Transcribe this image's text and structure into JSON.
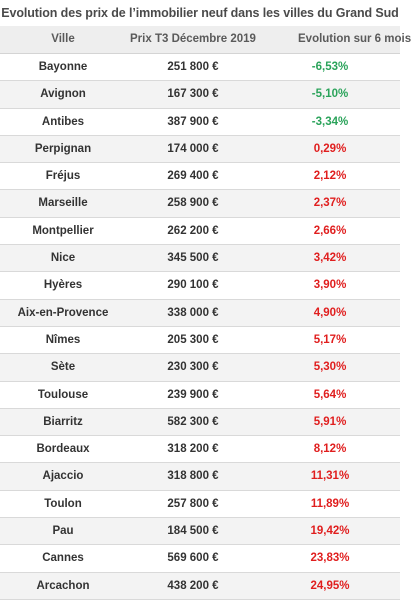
{
  "title": "Evolution des prix de l’immobilier neuf dans les villes du Grand Sud",
  "headers": {
    "city": "Ville",
    "price": "Prix T3 Décembre 2019",
    "evolution": "Evolution sur 6 mois"
  },
  "colors": {
    "negative": "#2aa35a",
    "positive": "#e01e1e"
  },
  "rows": [
    {
      "city": "Bayonne",
      "price": "251 800 €",
      "evolution": "-6,53%",
      "trend": "neg"
    },
    {
      "city": "Avignon",
      "price": "167 300 €",
      "evolution": "-5,10%",
      "trend": "neg"
    },
    {
      "city": "Antibes",
      "price": "387 900 €",
      "evolution": "-3,34%",
      "trend": "neg"
    },
    {
      "city": "Perpignan",
      "price": "174 000 €",
      "evolution": "0,29%",
      "trend": "pos"
    },
    {
      "city": "Fréjus",
      "price": "269 400 €",
      "evolution": "2,12%",
      "trend": "pos"
    },
    {
      "city": "Marseille",
      "price": "258 900 €",
      "evolution": "2,37%",
      "trend": "pos"
    },
    {
      "city": "Montpellier",
      "price": "262 200 €",
      "evolution": "2,66%",
      "trend": "pos"
    },
    {
      "city": "Nice",
      "price": "345 500 €",
      "evolution": "3,42%",
      "trend": "pos"
    },
    {
      "city": "Hyères",
      "price": "290 100 €",
      "evolution": "3,90%",
      "trend": "pos"
    },
    {
      "city": "Aix-en-Provence",
      "price": "338 000 €",
      "evolution": "4,90%",
      "trend": "pos"
    },
    {
      "city": "Nîmes",
      "price": "205 300 €",
      "evolution": "5,17%",
      "trend": "pos"
    },
    {
      "city": "Sète",
      "price": "230 300 €",
      "evolution": "5,30%",
      "trend": "pos"
    },
    {
      "city": "Toulouse",
      "price": "239 900 €",
      "evolution": "5,64%",
      "trend": "pos"
    },
    {
      "city": "Biarritz",
      "price": "582 300 €",
      "evolution": "5,91%",
      "trend": "pos"
    },
    {
      "city": "Bordeaux",
      "price": "318 200 €",
      "evolution": "8,12%",
      "trend": "pos"
    },
    {
      "city": "Ajaccio",
      "price": "318 800 €",
      "evolution": "11,31%",
      "trend": "pos"
    },
    {
      "city": "Toulon",
      "price": "257 800 €",
      "evolution": "11,89%",
      "trend": "pos"
    },
    {
      "city": "Pau",
      "price": "184 500 €",
      "evolution": "19,42%",
      "trend": "pos"
    },
    {
      "city": "Cannes",
      "price": "569 600 €",
      "evolution": "23,83%",
      "trend": "pos"
    },
    {
      "city": "Arcachon",
      "price": "438 200 €",
      "evolution": "24,95%",
      "trend": "pos"
    }
  ]
}
